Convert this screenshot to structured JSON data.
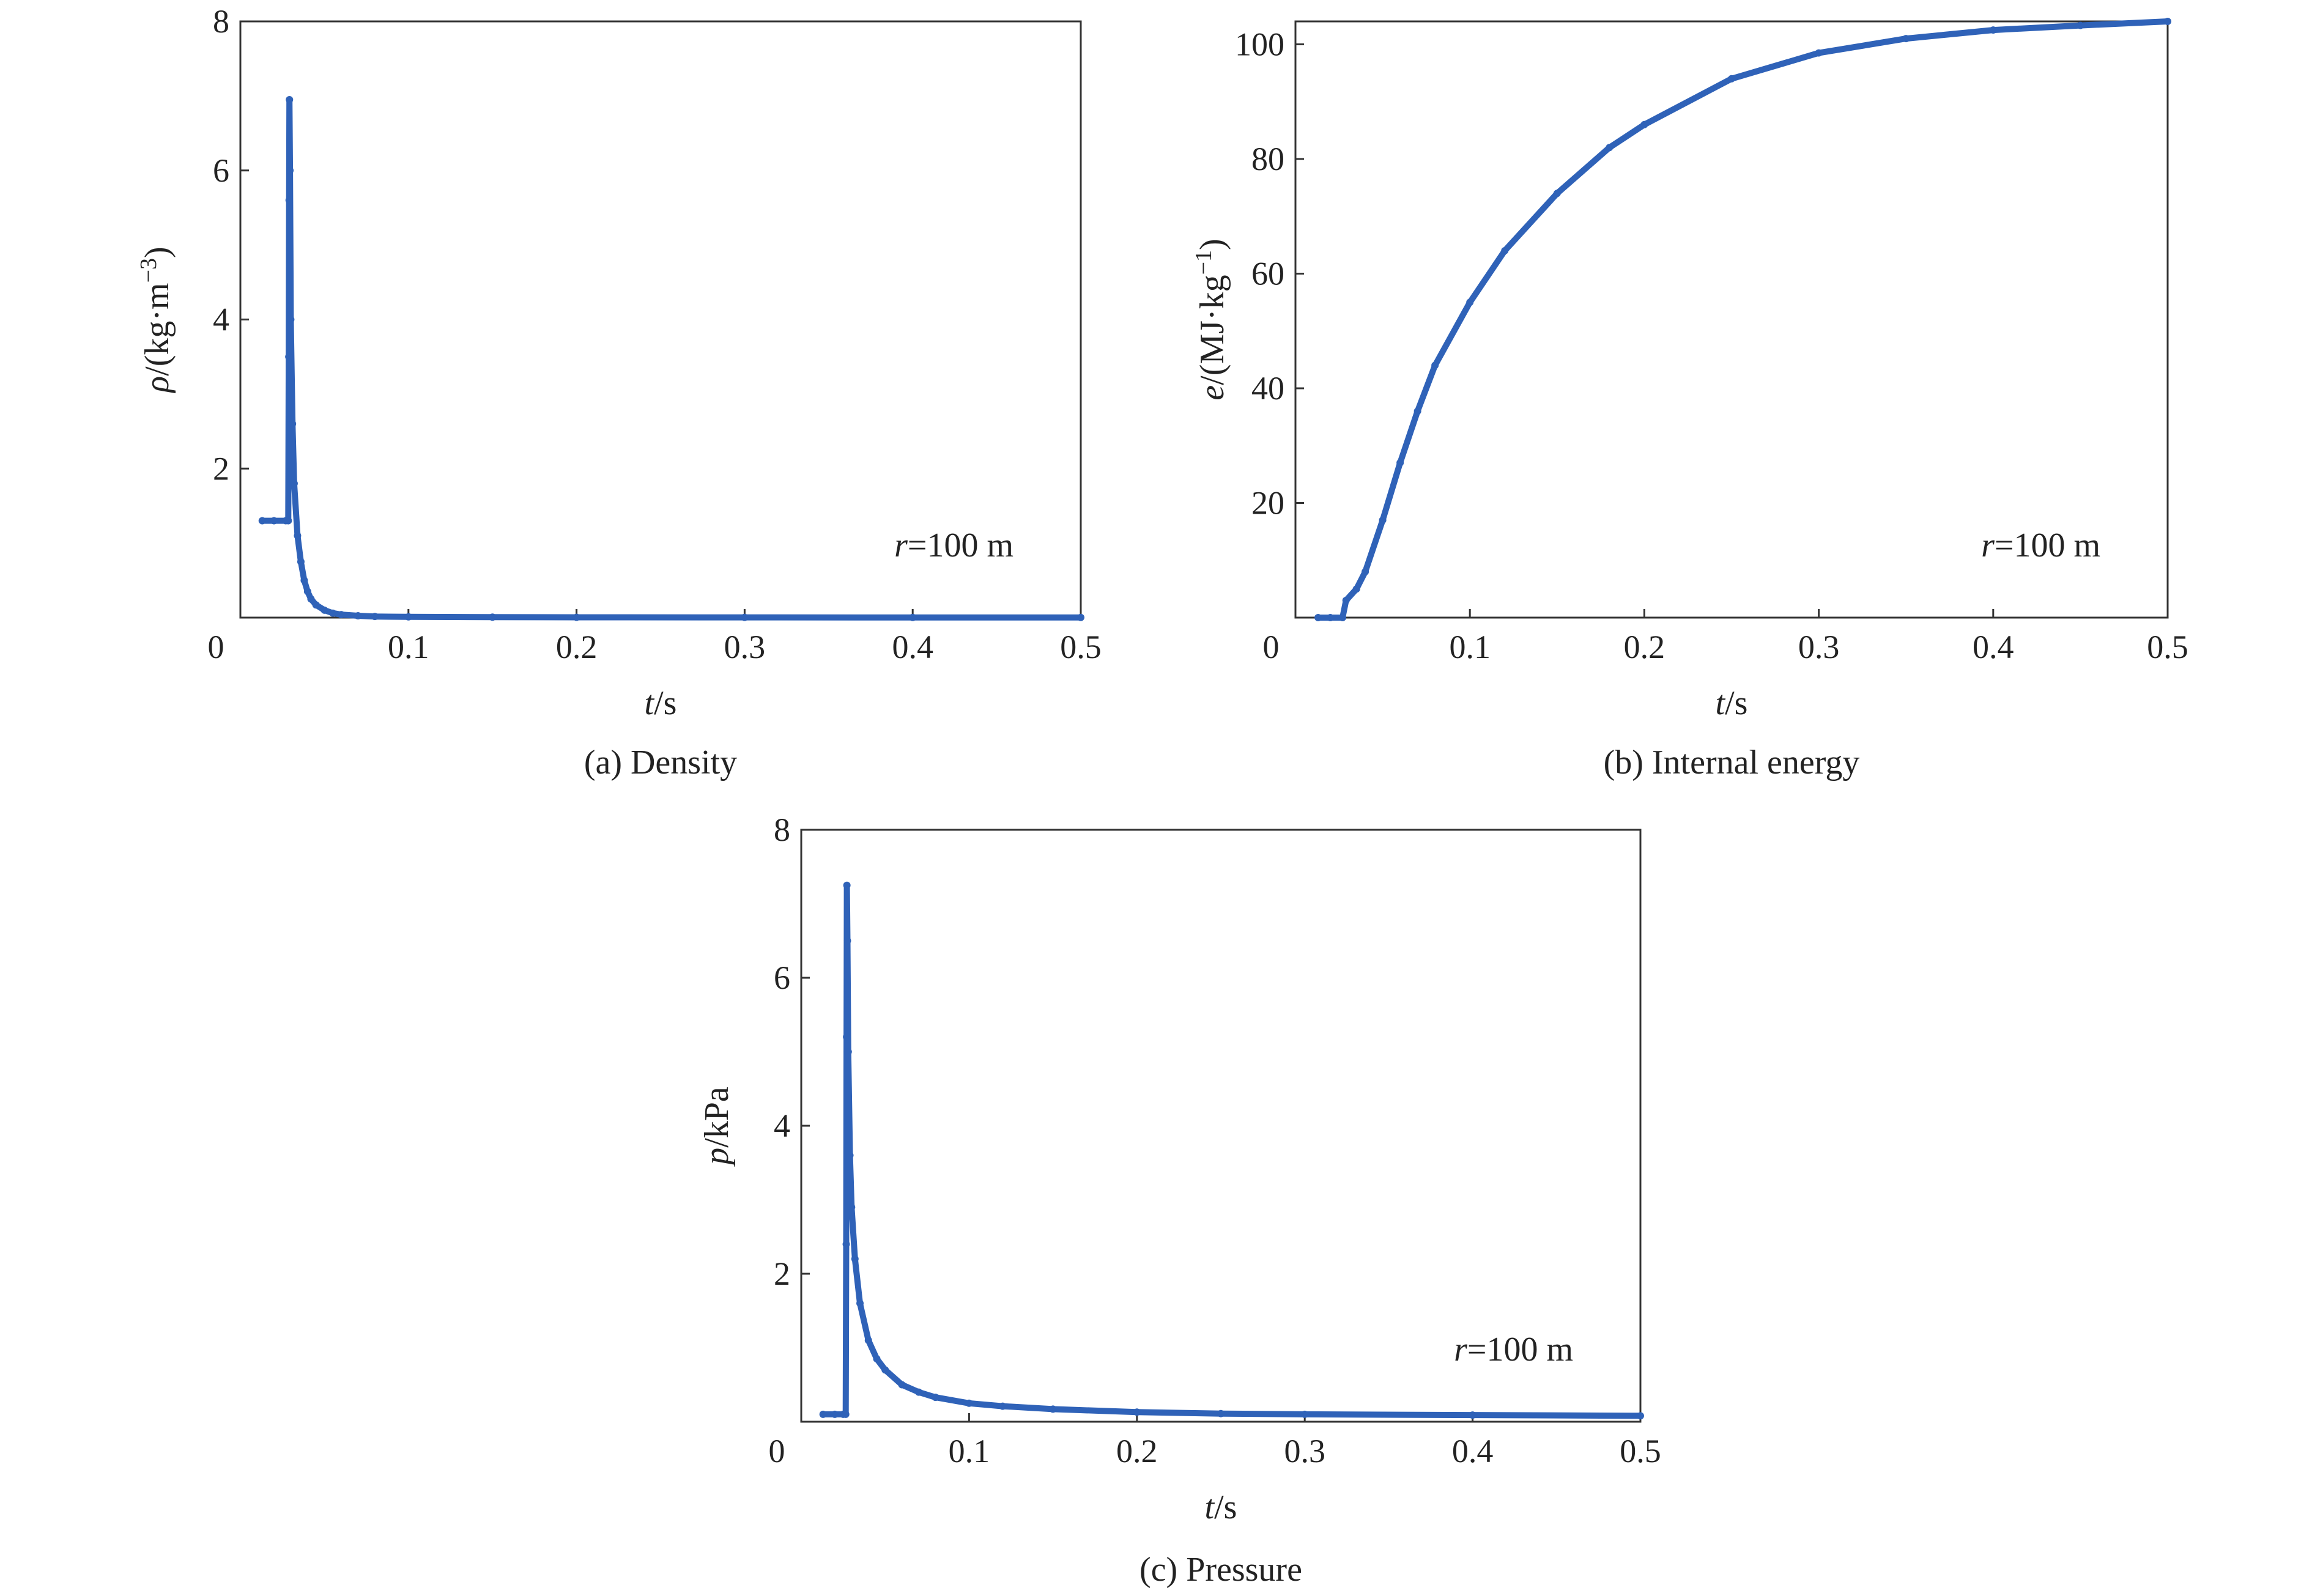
{
  "chart_data": [
    {
      "type": "line",
      "caption": "(a) Density",
      "xlabel_var": "t",
      "xlabel_unit": "/s",
      "ylabel_var": "ρ",
      "ylabel_unit": "/(kg·m",
      "ylabel_sup": "−3",
      "ylabel_tail": ")",
      "annotation_var": "r",
      "annotation_text": "=100 m",
      "xlim": [
        0,
        0.5
      ],
      "ylim": [
        0,
        8
      ],
      "xticks": [
        0,
        0.1,
        0.2,
        0.3,
        0.4,
        0.5
      ],
      "xtick_labels": [
        "0",
        "0.1",
        "0.2",
        "0.3",
        "0.4",
        "0.5"
      ],
      "yticks": [
        2,
        4,
        6,
        8
      ],
      "ytick_labels": [
        "2",
        "4",
        "6",
        "8"
      ],
      "grid": false,
      "color": "#2f62b8",
      "series": [
        {
          "x": [
            0.013,
            0.02,
            0.027,
            0.0285,
            0.0288,
            0.029,
            0.0292,
            0.0295,
            0.03,
            0.031,
            0.032,
            0.034,
            0.036,
            0.038,
            0.04,
            0.042,
            0.045,
            0.05,
            0.055,
            0.06,
            0.07,
            0.08,
            0.1,
            0.15,
            0.2,
            0.3,
            0.4,
            0.5
          ],
          "y": [
            1.3,
            1.3,
            1.3,
            1.3,
            3.5,
            5.6,
            6.95,
            6.0,
            4.0,
            2.6,
            1.8,
            1.1,
            0.75,
            0.5,
            0.35,
            0.25,
            0.17,
            0.1,
            0.06,
            0.04,
            0.025,
            0.015,
            0.01,
            0.006,
            0.004,
            0.003,
            0.002,
            0.002
          ]
        }
      ]
    },
    {
      "type": "line",
      "caption": "(b) Internal energy",
      "xlabel_var": "t",
      "xlabel_unit": "/s",
      "ylabel_var": "e",
      "ylabel_unit": "/(MJ·kg",
      "ylabel_sup": "−1",
      "ylabel_tail": ")",
      "annotation_var": "r",
      "annotation_text": "=100 m",
      "xlim": [
        0,
        0.5
      ],
      "ylim": [
        0,
        104
      ],
      "xticks": [
        0,
        0.1,
        0.2,
        0.3,
        0.4,
        0.5
      ],
      "xtick_labels": [
        "0",
        "0.1",
        "0.2",
        "0.3",
        "0.4",
        "0.5"
      ],
      "yticks": [
        20,
        40,
        60,
        80,
        100
      ],
      "ytick_labels": [
        "20",
        "40",
        "60",
        "80",
        "100"
      ],
      "grid": false,
      "color": "#2f62b8",
      "series": [
        {
          "x": [
            0.013,
            0.02,
            0.027,
            0.029,
            0.035,
            0.04,
            0.05,
            0.06,
            0.07,
            0.08,
            0.1,
            0.12,
            0.15,
            0.18,
            0.2,
            0.25,
            0.3,
            0.35,
            0.4,
            0.45,
            0.5
          ],
          "y": [
            0,
            0,
            0,
            3,
            5,
            8,
            17,
            27,
            36,
            44,
            55,
            64,
            74,
            82,
            86,
            94,
            98.5,
            101,
            102.5,
            103.3,
            104
          ]
        }
      ]
    },
    {
      "type": "line",
      "caption": "(c) Pressure",
      "xlabel_var": "t",
      "xlabel_unit": "/s",
      "ylabel_var": "p",
      "ylabel_unit": "/kPa",
      "ylabel_sup": "",
      "ylabel_tail": "",
      "annotation_var": "r",
      "annotation_text": "=100 m",
      "xlim": [
        0,
        0.5
      ],
      "ylim": [
        0,
        8
      ],
      "xticks": [
        0,
        0.1,
        0.2,
        0.3,
        0.4,
        0.5
      ],
      "xtick_labels": [
        "0",
        "0.1",
        "0.2",
        "0.3",
        "0.4",
        "0.5"
      ],
      "yticks": [
        2,
        4,
        6,
        8
      ],
      "ytick_labels": [
        "2",
        "4",
        "6",
        "8"
      ],
      "grid": false,
      "color": "#2f62b8",
      "series": [
        {
          "x": [
            0.013,
            0.02,
            0.025,
            0.0265,
            0.0268,
            0.027,
            0.0272,
            0.0275,
            0.028,
            0.029,
            0.03,
            0.032,
            0.035,
            0.04,
            0.045,
            0.05,
            0.06,
            0.07,
            0.08,
            0.1,
            0.12,
            0.15,
            0.2,
            0.25,
            0.3,
            0.4,
            0.5
          ],
          "y": [
            0.1,
            0.1,
            0.1,
            0.1,
            2.4,
            5.2,
            7.25,
            6.5,
            5.0,
            3.6,
            2.9,
            2.2,
            1.6,
            1.1,
            0.85,
            0.7,
            0.5,
            0.4,
            0.33,
            0.25,
            0.21,
            0.17,
            0.13,
            0.11,
            0.1,
            0.09,
            0.08
          ]
        }
      ]
    }
  ]
}
